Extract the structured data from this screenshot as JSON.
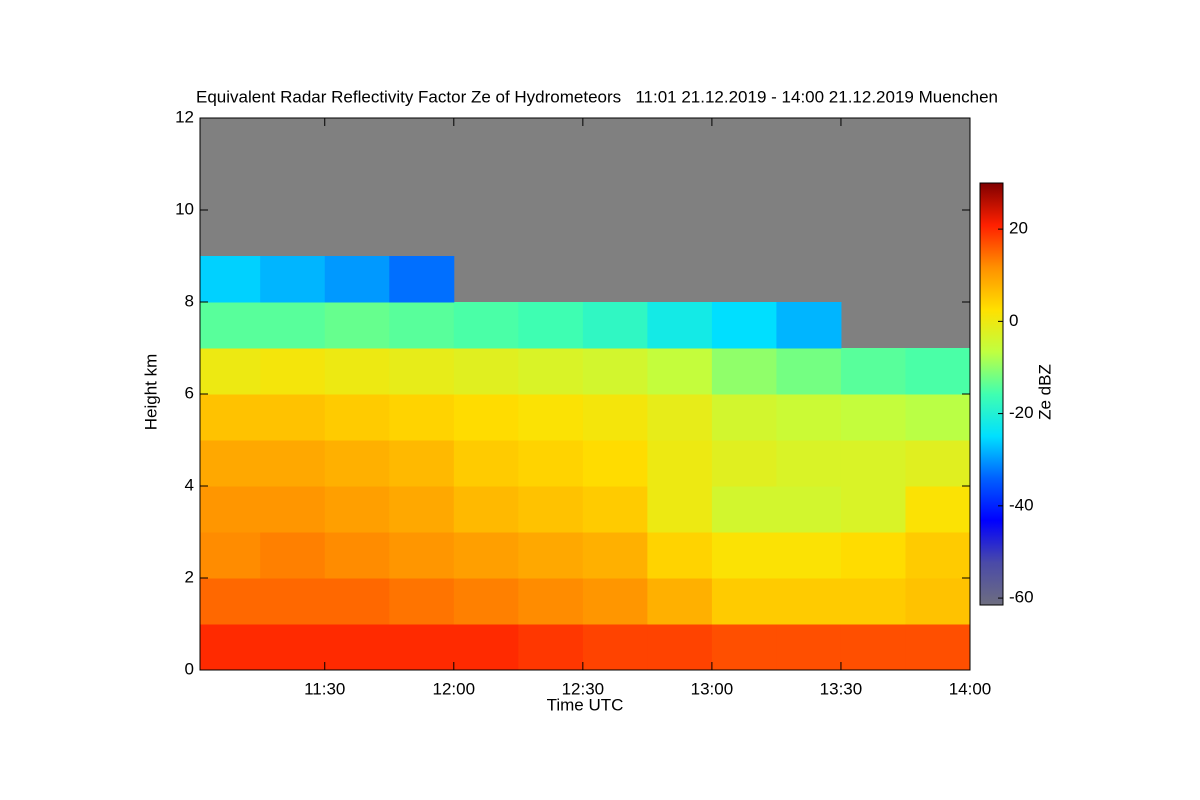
{
  "chart_data": {
    "type": "heatmap",
    "title": "Equivalent Radar Reflectivity Factor Ze of Hydrometeors   11:01 21.12.2019 - 14:00 21.12.2019 Muenchen",
    "x_label": "Time UTC",
    "y_label": "Height km",
    "colorbar_label": "Ze dBZ",
    "x_edges": [
      11.0167,
      11.25,
      11.5,
      11.75,
      12.0,
      12.25,
      12.5,
      12.75,
      13.0,
      13.25,
      13.5,
      13.75,
      14.0
    ],
    "y_edges": [
      0,
      1,
      2,
      3,
      4,
      5,
      6,
      7,
      8,
      9,
      10,
      11,
      12
    ],
    "z": [
      [
        20,
        20,
        20,
        20,
        20,
        19,
        18,
        18,
        17,
        17,
        17,
        17
      ],
      [
        15,
        15,
        15,
        14,
        13,
        12,
        11,
        8,
        5,
        5,
        5,
        6
      ],
      [
        12,
        13,
        12,
        11,
        10,
        9,
        8,
        4,
        2,
        2,
        3,
        5
      ],
      [
        11,
        11,
        10,
        9,
        7,
        6,
        5,
        0,
        -4,
        -4,
        -3,
        2
      ],
      [
        9,
        9,
        8,
        7,
        5,
        4,
        3,
        0,
        -2,
        -3,
        -3,
        -2
      ],
      [
        6,
        6,
        5,
        4,
        3,
        2,
        1,
        -1,
        -4,
        -5,
        -6,
        -7
      ],
      [
        0,
        1,
        0,
        -1,
        -2,
        -3,
        -4,
        -6,
        -10,
        -12,
        -14,
        -15
      ],
      [
        -14,
        -14,
        -13,
        -14,
        -15,
        -16,
        -18,
        -22,
        -25,
        -28,
        null,
        null
      ],
      [
        -26,
        -28,
        -30,
        -33,
        null,
        null,
        null,
        null,
        null,
        null,
        null,
        null
      ],
      [
        null,
        null,
        null,
        null,
        null,
        null,
        null,
        null,
        null,
        null,
        null,
        null
      ],
      [
        null,
        null,
        null,
        null,
        null,
        null,
        null,
        null,
        null,
        null,
        null,
        null
      ],
      [
        null,
        null,
        null,
        null,
        null,
        null,
        null,
        null,
        null,
        null,
        null,
        null
      ]
    ],
    "xlim": [
      11.0167,
      14.0
    ],
    "xticks": [
      {
        "value": 11.5,
        "label": "11:30"
      },
      {
        "value": 12.0,
        "label": "12:00"
      },
      {
        "value": 12.5,
        "label": "12:30"
      },
      {
        "value": 13.0,
        "label": "13:00"
      },
      {
        "value": 13.5,
        "label": "13:30"
      },
      {
        "value": 14.0,
        "label": "14:00"
      }
    ],
    "ylim": [
      0,
      12
    ],
    "yticks": [
      0,
      2,
      4,
      6,
      8,
      10,
      12
    ],
    "zlim": [
      -61.5,
      30
    ],
    "zticks": [
      -60,
      -40,
      -20,
      0,
      20
    ],
    "colormap": [
      "#6e6e80",
      "#4a4aa8",
      "#0000ff",
      "#0060ff",
      "#00e0ff",
      "#40ffb0",
      "#c0ff40",
      "#ffe000",
      "#ff9000",
      "#ff2000",
      "#800000"
    ],
    "no_data_color": "#808080"
  }
}
